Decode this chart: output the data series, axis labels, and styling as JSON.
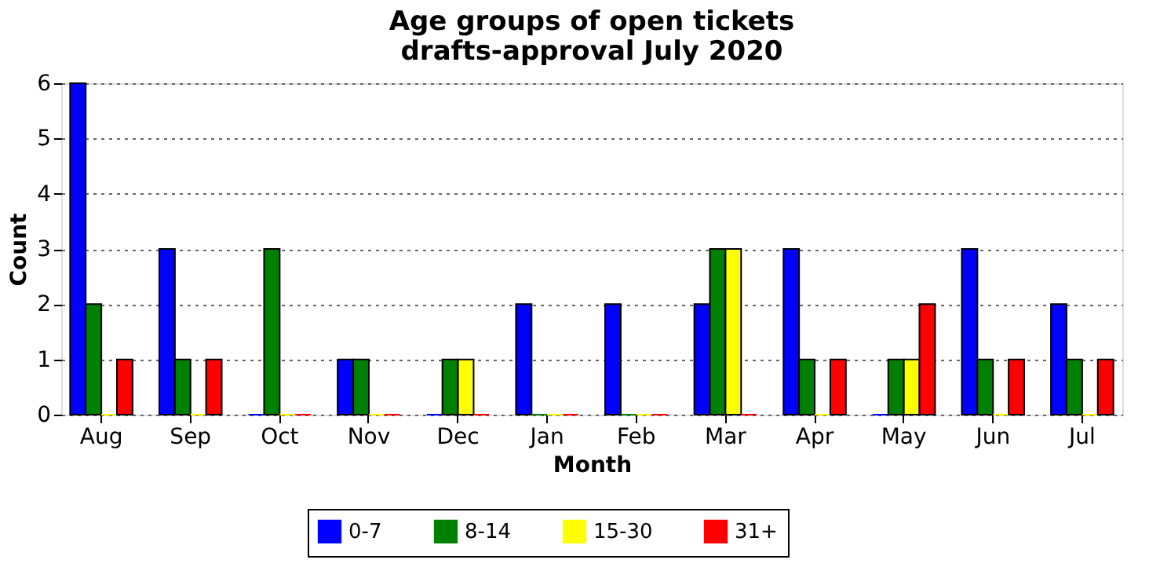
{
  "chart_data": {
    "type": "bar",
    "title": "Age groups of open tickets\ndrafts-approval July 2020",
    "xlabel": "Month",
    "ylabel": "Count",
    "categories": [
      "Aug",
      "Sep",
      "Oct",
      "Nov",
      "Dec",
      "Jan",
      "Feb",
      "Mar",
      "Apr",
      "May",
      "Jun",
      "Jul"
    ],
    "series": [
      {
        "name": "0-7",
        "color": "#0000ff",
        "values": [
          6,
          3,
          0,
          1,
          0,
          2,
          2,
          2,
          3,
          0,
          3,
          2
        ]
      },
      {
        "name": "8-14",
        "color": "#008000",
        "values": [
          2,
          1,
          3,
          1,
          1,
          0,
          0,
          3,
          1,
          1,
          1,
          1
        ]
      },
      {
        "name": "15-30",
        "color": "#ffff00",
        "values": [
          0,
          0,
          0,
          0,
          1,
          0,
          0,
          3,
          0,
          1,
          0,
          0
        ]
      },
      {
        "name": "31+",
        "color": "#ff0000",
        "values": [
          1,
          1,
          0,
          0,
          0,
          0,
          0,
          0,
          1,
          2,
          1,
          1
        ]
      }
    ],
    "ylim": [
      0,
      6
    ],
    "yticks": [
      0,
      1,
      2,
      3,
      4,
      5,
      6
    ],
    "grid": "y",
    "legend": "bottom"
  }
}
